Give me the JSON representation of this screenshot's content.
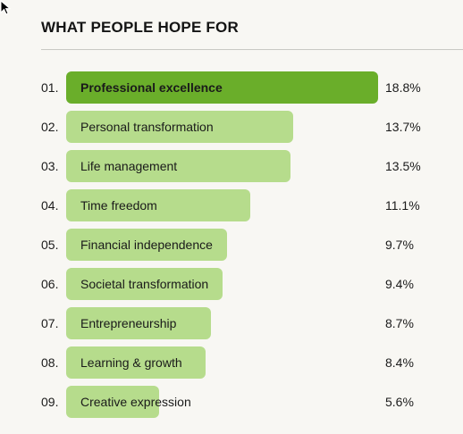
{
  "chart_data": {
    "type": "bar",
    "orientation": "horizontal",
    "title": "WHAT PEOPLE HOPE FOR",
    "ranks": [
      "01.",
      "02.",
      "03.",
      "04.",
      "05.",
      "06.",
      "07.",
      "08.",
      "09."
    ],
    "categories": [
      "Professional excellence",
      "Personal transformation",
      "Life management",
      "Time freedom",
      "Financial independence",
      "Societal transformation",
      "Entrepreneurship",
      "Learning & growth",
      "Creative expression"
    ],
    "values": [
      18.8,
      13.7,
      13.5,
      11.1,
      9.7,
      9.4,
      8.7,
      8.4,
      5.6
    ],
    "value_labels": [
      "18.8%",
      "13.7%",
      "13.5%",
      "11.1%",
      "9.7%",
      "9.4%",
      "8.7%",
      "8.4%",
      "5.6%"
    ],
    "unit": "%",
    "xlim": [
      0,
      18.8
    ],
    "grid": false,
    "legend": "none",
    "colors": {
      "highlight_bar": "#6aae2a",
      "bar": "#b6dc8c",
      "background": "#f8f7f3"
    }
  }
}
